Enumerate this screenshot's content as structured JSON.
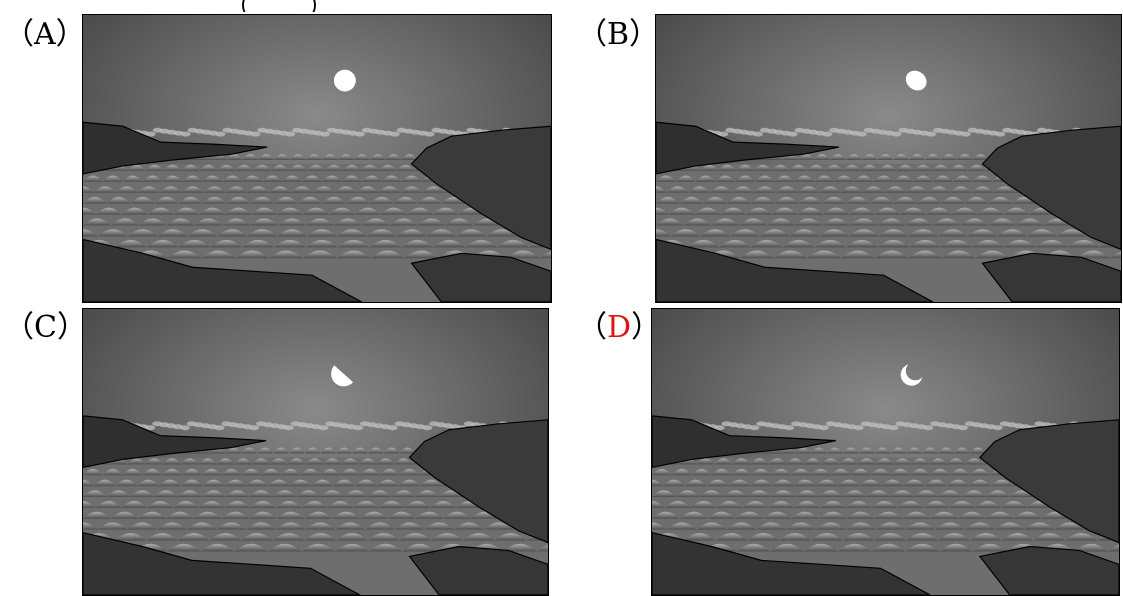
{
  "header_fragment": "……………………（……）",
  "options": [
    {
      "letter": "A",
      "open": "（",
      "close": "）",
      "moon": "full",
      "highlight": false
    },
    {
      "letter": "B",
      "open": "（",
      "close": "）",
      "moon": "gibbous",
      "highlight": false
    },
    {
      "letter": "C",
      "open": "（",
      "close": "）",
      "moon": "half",
      "highlight": false
    },
    {
      "letter": "D",
      "open": "（",
      "close": "）",
      "moon": "crescent",
      "highlight": true
    }
  ],
  "colors": {
    "highlight": "#e01515",
    "sky_top": "#3c3c3c",
    "sky_glow": "#8a8a8a",
    "moon": "#ffffff"
  }
}
